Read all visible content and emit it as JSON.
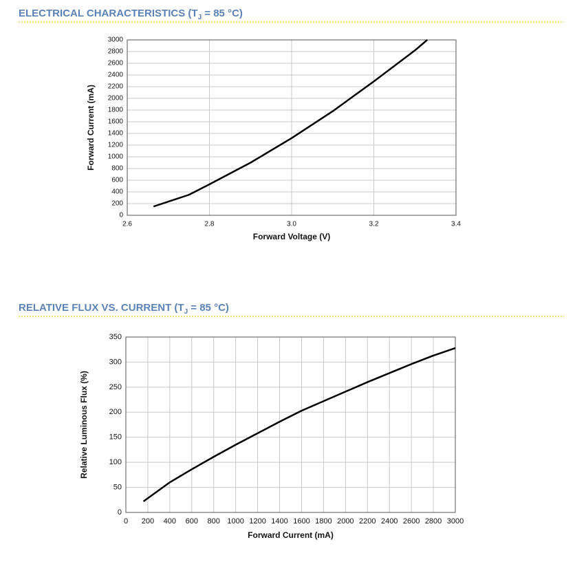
{
  "chart_data": [
    {
      "type": "line",
      "title": {
        "text": "ELECTRICAL CHARACTERISTICS (T",
        "subscript": "J",
        "suffix": " = 85 °C)"
      },
      "xlabel": "Forward Voltage (V)",
      "ylabel": "Forward Current (mA)",
      "x": [
        2.664,
        2.75,
        2.8,
        2.9,
        3.0,
        3.1,
        3.2,
        3.3,
        3.33
      ],
      "series": [
        {
          "color": "#000000",
          "values": [
            150,
            350,
            530,
            900,
            1320,
            1780,
            2290,
            2820,
            3000
          ]
        }
      ],
      "xlim": [
        2.6,
        3.4
      ],
      "xticks": [
        2.6,
        2.8,
        {
          "value": 3,
          "label": "3.0"
        },
        3.2,
        3.4
      ],
      "ylim": [
        0,
        3000
      ],
      "yticks": [
        0,
        200,
        400,
        600,
        800,
        1000,
        1200,
        1400,
        1600,
        1800,
        2000,
        2200,
        2400,
        2600,
        2800,
        3000
      ],
      "grid": true
    },
    {
      "type": "line",
      "title": {
        "text": "RELATIVE FLUX VS. CURRENT (T",
        "subscript": "J",
        "suffix": " = 85 °C)"
      },
      "xlabel": "Forward Current (mA)",
      "ylabel": "Relative Luminous Flux (%)",
      "x": [
        160,
        400,
        600,
        800,
        1000,
        1200,
        1400,
        1600,
        1800,
        2000,
        2200,
        2400,
        2600,
        2800,
        3000
      ],
      "series": [
        {
          "color": "#000000",
          "values": [
            22,
            60,
            86,
            111,
            135,
            158,
            181,
            203,
            222,
            241,
            260,
            278,
            296,
            313,
            328
          ]
        }
      ],
      "xlim": [
        0,
        3000
      ],
      "xticks": [
        0,
        200,
        400,
        600,
        800,
        1000,
        1200,
        1400,
        1600,
        1800,
        2000,
        2200,
        2400,
        2600,
        2800,
        3000
      ],
      "ylim": [
        0,
        350
      ],
      "yticks": [
        0,
        50,
        100,
        150,
        200,
        250,
        300,
        350
      ],
      "grid": true
    }
  ]
}
